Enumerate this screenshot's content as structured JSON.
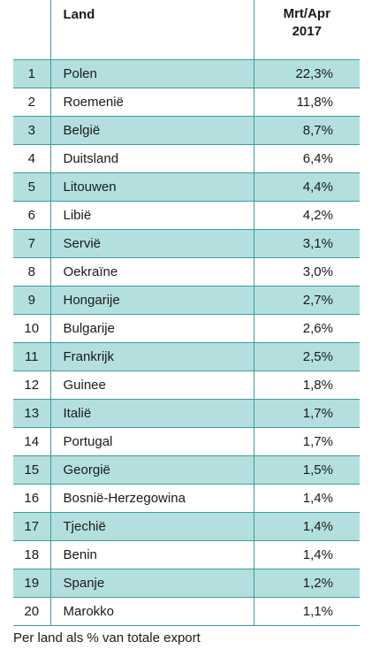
{
  "table": {
    "headers": {
      "rank": "",
      "land": "Land",
      "value_line1": "Mrt/Apr",
      "value_line2": "2017"
    },
    "rows": [
      {
        "rank": "1",
        "land": "Polen",
        "value": "22,3%"
      },
      {
        "rank": "2",
        "land": "Roemenië",
        "value": "11,8%"
      },
      {
        "rank": "3",
        "land": "België",
        "value": "8,7%"
      },
      {
        "rank": "4",
        "land": "Duitsland",
        "value": "6,4%"
      },
      {
        "rank": "5",
        "land": "Litouwen",
        "value": "4,4%"
      },
      {
        "rank": "6",
        "land": "Libië",
        "value": "4,2%"
      },
      {
        "rank": "7",
        "land": "Servië",
        "value": "3,1%"
      },
      {
        "rank": "8",
        "land": "Oekraïne",
        "value": "3,0%"
      },
      {
        "rank": "9",
        "land": "Hongarije",
        "value": "2,7%"
      },
      {
        "rank": "10",
        "land": "Bulgarije",
        "value": "2,6%"
      },
      {
        "rank": "11",
        "land": "Frankrijk",
        "value": "2,5%"
      },
      {
        "rank": "12",
        "land": "Guinee",
        "value": "1,8%"
      },
      {
        "rank": "13",
        "land": "Italië",
        "value": "1,7%"
      },
      {
        "rank": "14",
        "land": "Portugal",
        "value": "1,7%"
      },
      {
        "rank": "15",
        "land": "Georgië",
        "value": "1,5%"
      },
      {
        "rank": "16",
        "land": "Bosnië-Herzegowina",
        "value": "1,4%"
      },
      {
        "rank": "17",
        "land": "Tjechië",
        "value": "1,4%"
      },
      {
        "rank": "18",
        "land": "Benin",
        "value": "1,4%"
      },
      {
        "rank": "19",
        "land": "Spanje",
        "value": "1,2%"
      },
      {
        "rank": "20",
        "land": "Marokko",
        "value": "1,1%"
      }
    ]
  },
  "caption": "Per land als % van totale export",
  "colors": {
    "shaded_row": "#b3e0df",
    "rule": "#3f9a9b"
  }
}
